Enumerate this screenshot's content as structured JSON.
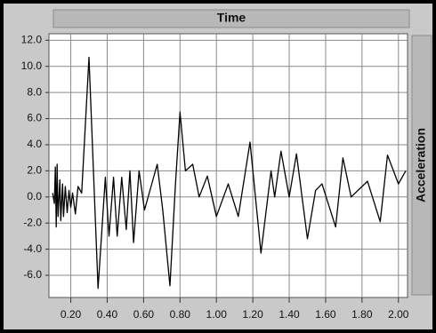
{
  "chart_data": {
    "type": "line",
    "x_label": "Time",
    "y_label": "Acceleration",
    "x": [
      0.1,
      0.11,
      0.115,
      0.12,
      0.125,
      0.13,
      0.14,
      0.145,
      0.155,
      0.16,
      0.17,
      0.18,
      0.19,
      0.2,
      0.21,
      0.225,
      0.24,
      0.26,
      0.3,
      0.35,
      0.39,
      0.41,
      0.435,
      0.455,
      0.48,
      0.505,
      0.525,
      0.545,
      0.575,
      0.605,
      0.675,
      0.705,
      0.745,
      0.775,
      0.8,
      0.83,
      0.87,
      0.905,
      0.95,
      1.0,
      1.065,
      1.12,
      1.185,
      1.245,
      1.3,
      1.32,
      1.355,
      1.4,
      1.44,
      1.5,
      1.545,
      1.58,
      1.655,
      1.695,
      1.74,
      1.83,
      1.9,
      1.94,
      2.0,
      2.04
    ],
    "series": [
      {
        "color": "#000000",
        "values": [
          0.3,
          -0.5,
          2.3,
          -2.3,
          2.5,
          -1.5,
          1.3,
          -1.8,
          1.0,
          -1.5,
          0.8,
          -1.2,
          0.5,
          -0.8,
          0.3,
          -1.3,
          0.8,
          0.3,
          10.7,
          -7.0,
          1.5,
          -3.0,
          1.5,
          -3.0,
          1.5,
          -2.5,
          2.0,
          -3.5,
          2.0,
          -1.0,
          2.5,
          -1.0,
          -6.8,
          1.0,
          6.5,
          2.0,
          2.5,
          0.0,
          1.6,
          -1.5,
          1.0,
          -1.5,
          4.2,
          -4.3,
          2.0,
          0.0,
          3.5,
          0.0,
          3.3,
          -3.2,
          0.5,
          1.0,
          -2.3,
          3.0,
          0.0,
          1.2,
          -1.9,
          3.2,
          1.0,
          2.0
        ]
      }
    ],
    "xlim": [
      0.08,
      2.05
    ],
    "ylim": [
      -7.7,
      12.5
    ],
    "xticks": [
      {
        "value": 0.2,
        "label": "0.20"
      },
      {
        "value": 0.4,
        "label": "0.40"
      },
      {
        "value": 0.6,
        "label": "0.60"
      },
      {
        "value": 0.8,
        "label": "0.80"
      },
      {
        "value": 1.0,
        "label": "1.00"
      },
      {
        "value": 1.2,
        "label": "1.20"
      },
      {
        "value": 1.4,
        "label": "1.40"
      },
      {
        "value": 1.6,
        "label": "1.60"
      },
      {
        "value": 1.8,
        "label": "1.80"
      },
      {
        "value": 2.0,
        "label": "2.00"
      }
    ],
    "yticks": [
      {
        "value": -6,
        "label": "-6.0"
      },
      {
        "value": -4,
        "label": "-4.0"
      },
      {
        "value": -2,
        "label": "-2.0"
      },
      {
        "value": 0,
        "label": "0.0"
      },
      {
        "value": 2,
        "label": "2.0"
      },
      {
        "value": 4,
        "label": "4.0"
      },
      {
        "value": 6,
        "label": "6.0"
      },
      {
        "value": 8,
        "label": "8.0"
      },
      {
        "value": 10,
        "label": "10.0"
      },
      {
        "value": 12,
        "label": "12.0"
      }
    ],
    "grid": true
  }
}
